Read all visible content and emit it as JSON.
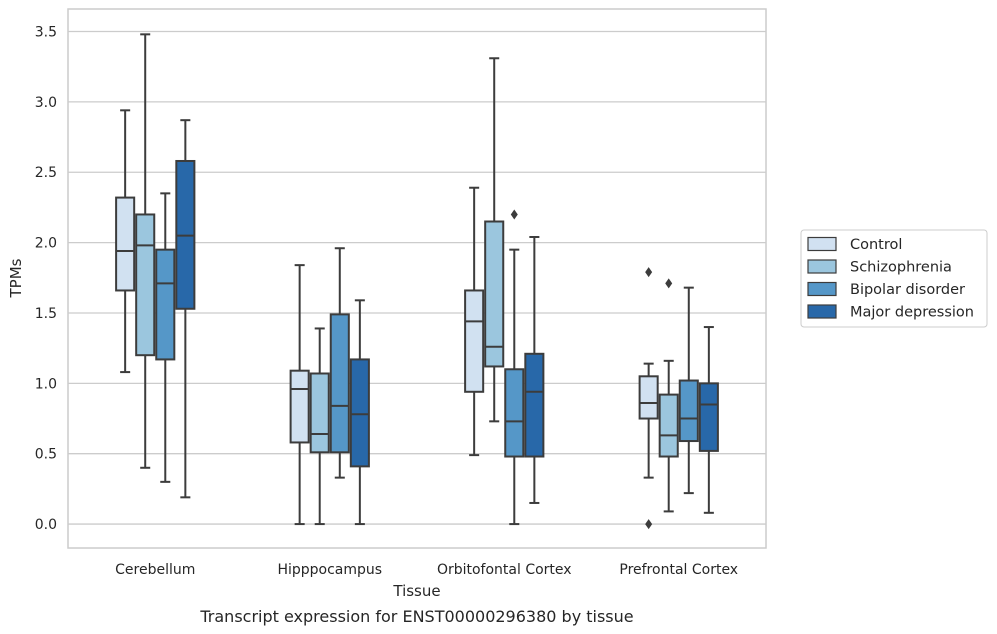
{
  "chart_data": {
    "type": "box",
    "xlabel": "Tissue",
    "ylabel": "TPMs",
    "caption": "Transcript expression for ENST00000296380 by tissue",
    "ylim": [
      -0.17,
      3.66
    ],
    "yticks": [
      "0.0",
      "0.5",
      "1.0",
      "1.5",
      "2.0",
      "2.5",
      "3.0",
      "3.5"
    ],
    "grid": "horizontal",
    "legend_position": "right",
    "categories": [
      "Cerebellum",
      "Hipppocampus",
      "Orbitofontal Cortex",
      "Prefrontal Cortex"
    ],
    "series": [
      {
        "name": "Control",
        "color": "#d1e1f1",
        "boxes": [
          {
            "whislo": 1.08,
            "q1": 1.66,
            "med": 1.94,
            "q3": 2.32,
            "whishi": 2.94,
            "fliers": []
          },
          {
            "whislo": 0.0,
            "q1": 0.58,
            "med": 0.96,
            "q3": 1.09,
            "whishi": 1.84,
            "fliers": []
          },
          {
            "whislo": 0.49,
            "q1": 0.94,
            "med": 1.44,
            "q3": 1.66,
            "whishi": 2.39,
            "fliers": []
          },
          {
            "whislo": 0.33,
            "q1": 0.75,
            "med": 0.86,
            "q3": 1.05,
            "whishi": 1.14,
            "fliers": [
              1.79,
              0.0
            ]
          }
        ]
      },
      {
        "name": "Schizophrenia",
        "color": "#9bc6de",
        "boxes": [
          {
            "whislo": 0.4,
            "q1": 1.2,
            "med": 1.98,
            "q3": 2.2,
            "whishi": 3.48,
            "fliers": []
          },
          {
            "whislo": 0.0,
            "q1": 0.51,
            "med": 0.64,
            "q3": 1.07,
            "whishi": 1.39,
            "fliers": []
          },
          {
            "whislo": 0.73,
            "q1": 1.12,
            "med": 1.26,
            "q3": 2.15,
            "whishi": 3.31,
            "fliers": []
          },
          {
            "whislo": 0.09,
            "q1": 0.48,
            "med": 0.63,
            "q3": 0.92,
            "whishi": 1.16,
            "fliers": [
              1.71
            ]
          }
        ]
      },
      {
        "name": "Bipolar disorder",
        "color": "#5597c8",
        "boxes": [
          {
            "whislo": 0.3,
            "q1": 1.17,
            "med": 1.71,
            "q3": 1.95,
            "whishi": 2.35,
            "fliers": []
          },
          {
            "whislo": 0.33,
            "q1": 0.51,
            "med": 0.84,
            "q3": 1.49,
            "whishi": 1.96,
            "fliers": []
          },
          {
            "whislo": 0.0,
            "q1": 0.48,
            "med": 0.73,
            "q3": 1.1,
            "whishi": 1.95,
            "fliers": [
              2.2
            ]
          },
          {
            "whislo": 0.22,
            "q1": 0.59,
            "med": 0.75,
            "q3": 1.02,
            "whishi": 1.68,
            "fliers": []
          }
        ]
      },
      {
        "name": "Major depression",
        "color": "#2868a9",
        "boxes": [
          {
            "whislo": 0.19,
            "q1": 1.53,
            "med": 2.05,
            "q3": 2.58,
            "whishi": 2.87,
            "fliers": []
          },
          {
            "whislo": 0.0,
            "q1": 0.41,
            "med": 0.78,
            "q3": 1.17,
            "whishi": 1.59,
            "fliers": []
          },
          {
            "whislo": 0.15,
            "q1": 0.48,
            "med": 0.94,
            "q3": 1.21,
            "whishi": 2.04,
            "fliers": []
          },
          {
            "whislo": 0.08,
            "q1": 0.52,
            "med": 0.85,
            "q3": 1.0,
            "whishi": 1.4,
            "fliers": []
          }
        ]
      }
    ]
  }
}
